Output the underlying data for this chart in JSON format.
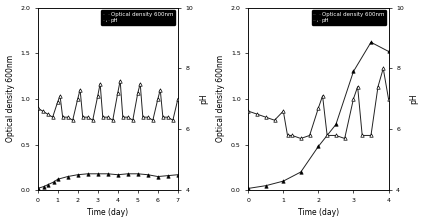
{
  "left": {
    "od_x": [
      0,
      0.3,
      0.5,
      0.8,
      1.0,
      1.5,
      2.0,
      2.5,
      3.0,
      3.5,
      4.0,
      4.5,
      5.0,
      5.5,
      6.0,
      6.5,
      7.0
    ],
    "od_y": [
      0.02,
      0.04,
      0.06,
      0.09,
      0.12,
      0.15,
      0.17,
      0.18,
      0.18,
      0.18,
      0.17,
      0.18,
      0.18,
      0.17,
      0.15,
      0.16,
      0.17
    ],
    "ph_x": [
      0,
      0.25,
      0.5,
      0.75,
      1.0,
      1.12,
      1.25,
      1.5,
      1.75,
      2.0,
      2.12,
      2.25,
      2.5,
      2.75,
      3.0,
      3.12,
      3.25,
      3.5,
      3.75,
      4.0,
      4.12,
      4.25,
      4.5,
      4.75,
      5.0,
      5.12,
      5.25,
      5.5,
      5.75,
      6.0,
      6.12,
      6.25,
      6.5,
      6.75,
      7.0
    ],
    "ph_y": [
      6.7,
      6.6,
      6.5,
      6.4,
      6.9,
      7.1,
      6.4,
      6.4,
      6.3,
      7.0,
      7.3,
      6.4,
      6.4,
      6.3,
      7.1,
      7.5,
      6.4,
      6.4,
      6.3,
      7.2,
      7.6,
      6.4,
      6.4,
      6.3,
      7.2,
      7.5,
      6.4,
      6.4,
      6.3,
      7.0,
      7.3,
      6.4,
      6.4,
      6.3,
      7.0
    ],
    "xlim": [
      0,
      7
    ],
    "ylim_od": [
      0,
      2.0
    ],
    "ylim_ph": [
      4,
      10
    ],
    "xlabel": "Time (day)",
    "ylabel_left": "Optical density 600nm",
    "ylabel_right": "pH",
    "xticks": [
      0,
      1,
      2,
      3,
      4,
      5,
      6,
      7
    ]
  },
  "right": {
    "od_x": [
      0,
      0.5,
      1.0,
      1.5,
      2.0,
      2.5,
      3.0,
      3.5,
      4.0
    ],
    "od_y": [
      0.02,
      0.05,
      0.1,
      0.2,
      0.48,
      0.72,
      1.3,
      1.62,
      1.52
    ],
    "ph_x": [
      0,
      0.25,
      0.5,
      0.75,
      1.0,
      1.12,
      1.25,
      1.5,
      1.75,
      2.0,
      2.12,
      2.25,
      2.5,
      2.75,
      3.0,
      3.12,
      3.25,
      3.5,
      3.7,
      3.85,
      4.0
    ],
    "ph_y": [
      6.6,
      6.5,
      6.4,
      6.3,
      6.6,
      5.8,
      5.8,
      5.7,
      5.8,
      6.7,
      7.1,
      5.8,
      5.8,
      5.7,
      7.0,
      7.4,
      5.8,
      5.8,
      7.4,
      8.0,
      7.0
    ],
    "xlim": [
      0,
      4
    ],
    "ylim_od": [
      0,
      2.0
    ],
    "ylim_ph": [
      4,
      10
    ],
    "xlabel": "Time (day)",
    "ylabel_left": "Optical density 600nm",
    "ylabel_right": "pH",
    "xticks": [
      0,
      1,
      2,
      3,
      4
    ]
  },
  "legend_od": "Optical density 600nm",
  "legend_ph": "pH",
  "od_color": "#222222",
  "ph_color": "#222222",
  "od_marker": "^",
  "ph_marker": "^",
  "bg_color": "#ffffff",
  "fontsize": 5.5,
  "legend_fontsize": 4.0
}
